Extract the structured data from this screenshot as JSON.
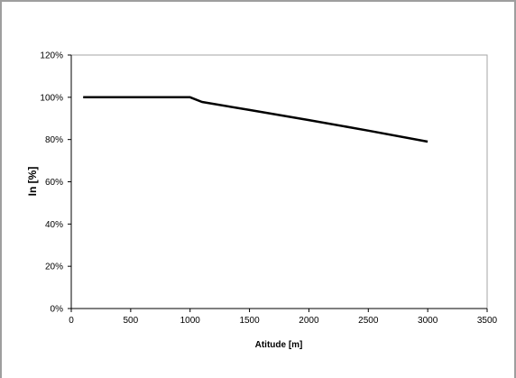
{
  "chart_data": {
    "type": "line",
    "title": "",
    "xlabel": "Atitude [m]",
    "ylabel": "In [%]",
    "xlim": [
      0,
      3500
    ],
    "ylim": [
      0,
      120
    ],
    "x_ticks": [
      0,
      500,
      1000,
      1500,
      2000,
      2500,
      3000,
      3500
    ],
    "x_tick_labels": [
      "0",
      "500",
      "1000",
      "1500",
      "2000",
      "2500",
      "3000",
      "3500"
    ],
    "y_ticks": [
      0,
      20,
      40,
      60,
      80,
      100,
      120
    ],
    "y_tick_labels": [
      "0%",
      "20%",
      "40%",
      "60%",
      "80%",
      "100%",
      "120%"
    ],
    "grid": false,
    "legend": "none",
    "series": [
      {
        "color": "#000000",
        "x": [
          100,
          1000,
          1100,
          1500,
          2000,
          2500,
          3000
        ],
        "y": [
          100,
          100,
          97.8,
          94,
          89.2,
          84.2,
          79
        ]
      }
    ]
  }
}
